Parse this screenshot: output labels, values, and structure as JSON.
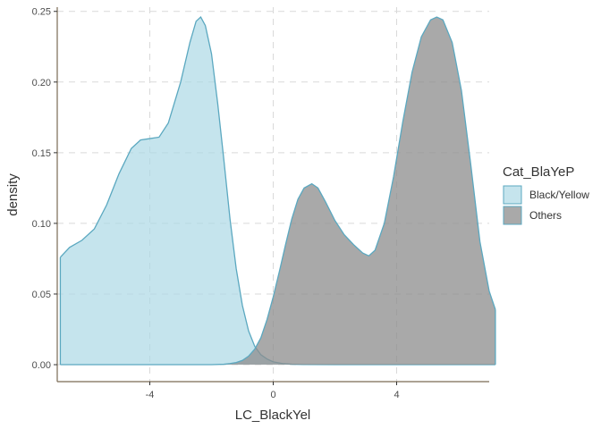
{
  "chart_data": {
    "type": "area",
    "subtype": "density",
    "xlabel": "LC_BlackYel",
    "ylabel": "density",
    "xlim": [
      -7.0,
      7.0
    ],
    "ylim": [
      -0.012,
      0.253
    ],
    "x_ticks": [
      -4,
      0,
      4
    ],
    "x_tick_labels": [
      "-4",
      "0",
      "4"
    ],
    "y_ticks": [
      0.0,
      0.05,
      0.1,
      0.15,
      0.2,
      0.25
    ],
    "y_tick_labels": [
      "0.00",
      "0.05",
      "0.10",
      "0.15",
      "0.20",
      "0.25"
    ],
    "grid": true,
    "legend": {
      "title": "Cat_BlaYeP",
      "position": "right",
      "entries": [
        "Black/Yellow",
        "Others"
      ]
    },
    "series": [
      {
        "name": "Black/Yellow",
        "fill": "#add8e6",
        "stroke": "#5ba8c0",
        "fill_opacity": 0.7,
        "points": [
          [
            -6.9,
            0.076
          ],
          [
            -6.6,
            0.083
          ],
          [
            -6.2,
            0.088
          ],
          [
            -5.8,
            0.096
          ],
          [
            -5.4,
            0.113
          ],
          [
            -5.0,
            0.135
          ],
          [
            -4.6,
            0.153
          ],
          [
            -4.3,
            0.159
          ],
          [
            -4.0,
            0.16
          ],
          [
            -3.7,
            0.161
          ],
          [
            -3.4,
            0.171
          ],
          [
            -3.0,
            0.2
          ],
          [
            -2.7,
            0.228
          ],
          [
            -2.5,
            0.243
          ],
          [
            -2.35,
            0.246
          ],
          [
            -2.2,
            0.24
          ],
          [
            -2.0,
            0.22
          ],
          [
            -1.8,
            0.185
          ],
          [
            -1.6,
            0.145
          ],
          [
            -1.4,
            0.103
          ],
          [
            -1.2,
            0.068
          ],
          [
            -1.0,
            0.042
          ],
          [
            -0.8,
            0.024
          ],
          [
            -0.6,
            0.013
          ],
          [
            -0.4,
            0.007
          ],
          [
            -0.2,
            0.004
          ],
          [
            0.0,
            0.002
          ],
          [
            0.3,
            0.0008
          ],
          [
            0.6,
            0.0003
          ],
          [
            1.0,
            0.0001
          ],
          [
            2.0,
            0.0
          ],
          [
            4.0,
            0.0
          ],
          [
            6.0,
            0.0
          ],
          [
            7.2,
            0.0
          ]
        ]
      },
      {
        "name": "Others",
        "fill": "#8c8c8c",
        "stroke": "#5ba8c0",
        "fill_opacity": 0.75,
        "points": [
          [
            -6.9,
            0.0
          ],
          [
            -4.0,
            0.0
          ],
          [
            -2.0,
            0.0
          ],
          [
            -1.6,
            0.0003
          ],
          [
            -1.4,
            0.0008
          ],
          [
            -1.2,
            0.0015
          ],
          [
            -1.0,
            0.003
          ],
          [
            -0.8,
            0.006
          ],
          [
            -0.6,
            0.011
          ],
          [
            -0.4,
            0.019
          ],
          [
            -0.2,
            0.032
          ],
          [
            0.0,
            0.048
          ],
          [
            0.2,
            0.066
          ],
          [
            0.4,
            0.085
          ],
          [
            0.6,
            0.103
          ],
          [
            0.8,
            0.117
          ],
          [
            1.0,
            0.125
          ],
          [
            1.25,
            0.128
          ],
          [
            1.45,
            0.125
          ],
          [
            1.7,
            0.115
          ],
          [
            2.0,
            0.102
          ],
          [
            2.3,
            0.092
          ],
          [
            2.6,
            0.085
          ],
          [
            2.9,
            0.079
          ],
          [
            3.1,
            0.077
          ],
          [
            3.3,
            0.081
          ],
          [
            3.6,
            0.1
          ],
          [
            3.9,
            0.133
          ],
          [
            4.2,
            0.172
          ],
          [
            4.5,
            0.207
          ],
          [
            4.8,
            0.232
          ],
          [
            5.1,
            0.244
          ],
          [
            5.3,
            0.246
          ],
          [
            5.5,
            0.244
          ],
          [
            5.8,
            0.228
          ],
          [
            6.1,
            0.194
          ],
          [
            6.4,
            0.142
          ],
          [
            6.7,
            0.087
          ],
          [
            7.0,
            0.052
          ],
          [
            7.2,
            0.039
          ]
        ]
      }
    ]
  }
}
